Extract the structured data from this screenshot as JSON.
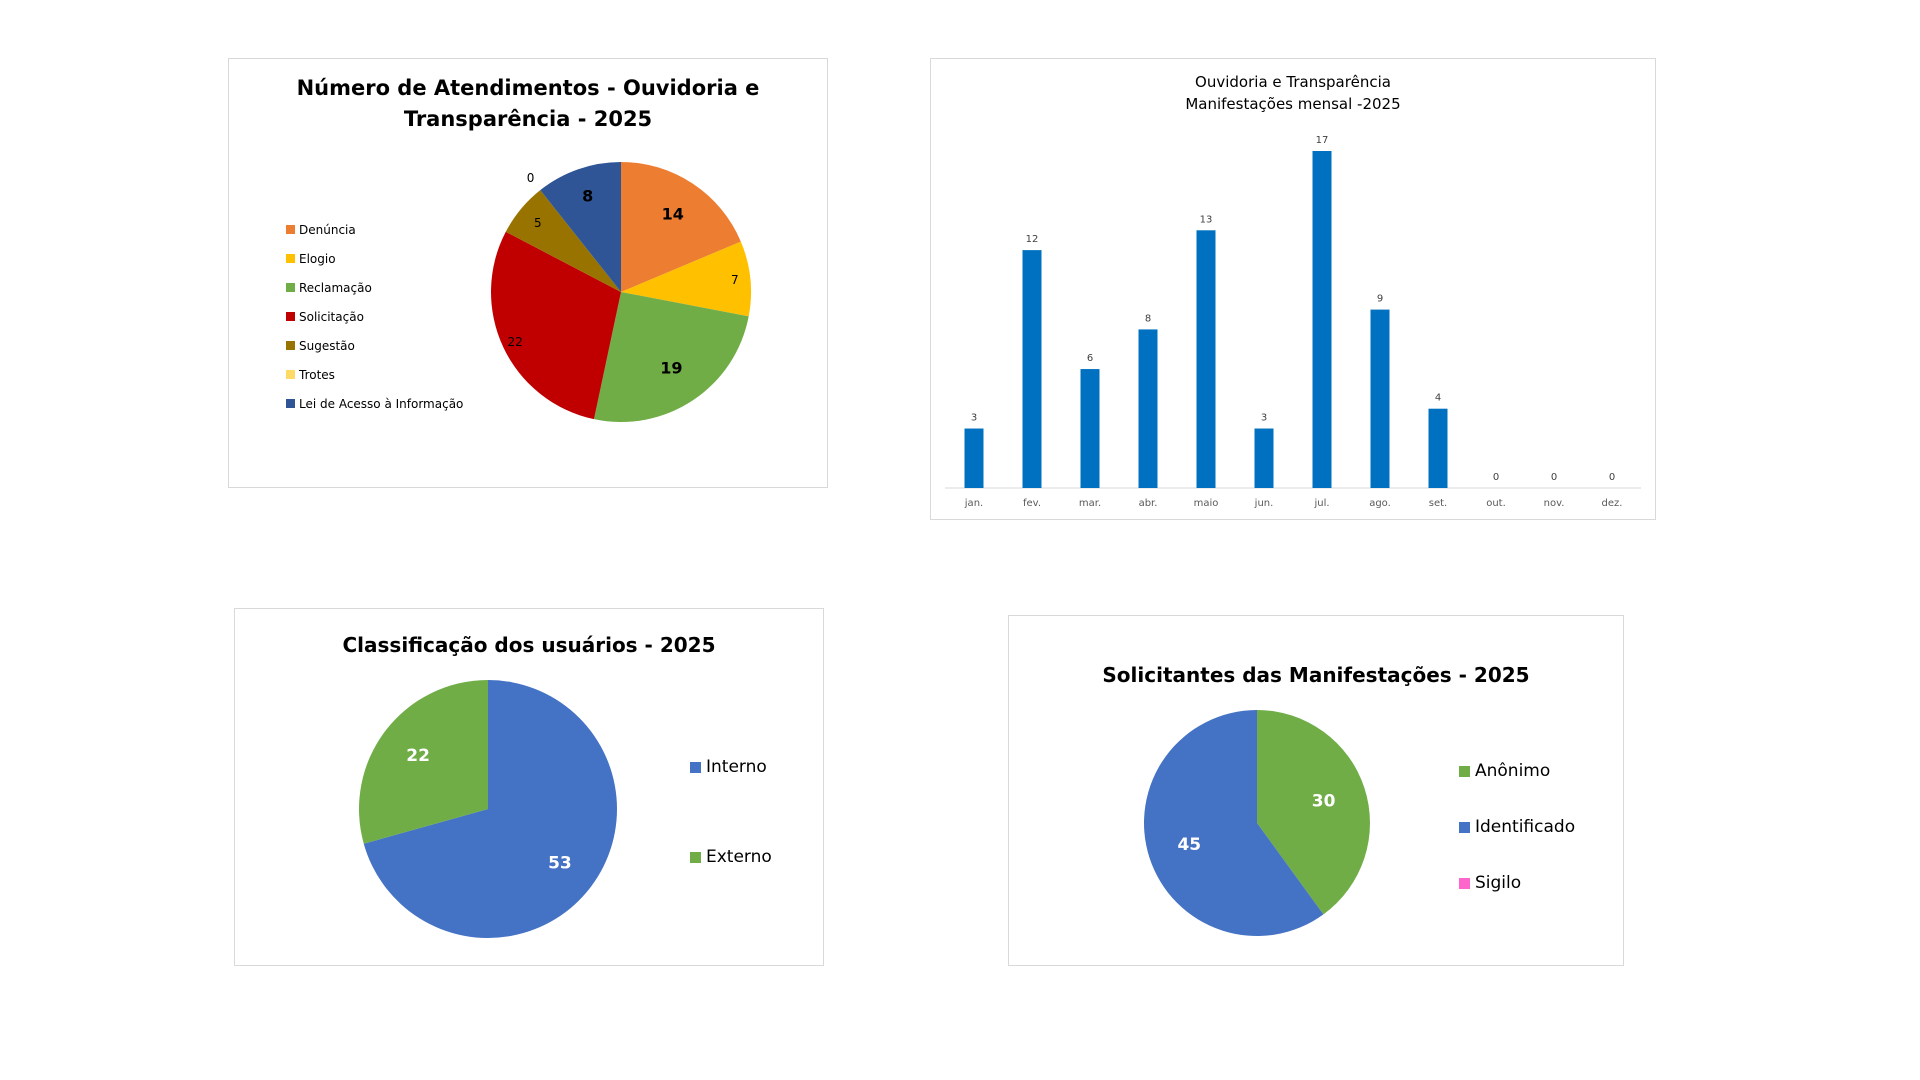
{
  "colors": {
    "denuncia": "#ED7D31",
    "elogio": "#FFC000",
    "reclamacao": "#70AD47",
    "solicitacao": "#C00000",
    "sugestao": "#997300",
    "trotes": "#FFD966",
    "lai": "#2F5597",
    "bar": "#0070C0",
    "interno": "#4472C4",
    "externo": "#70AD47",
    "anonimo": "#70AD47",
    "identificado": "#4472C4",
    "sigilo": "#FF66CC",
    "border": "#d9d9d9"
  },
  "chart_data": [
    {
      "type": "pie",
      "title": "Número de Atendimentos - Ouvidoria e Transparência - 2025",
      "title_lines": [
        "Número de Atendimentos - Ouvidoria e",
        "Transparência - 2025"
      ],
      "categories": [
        "Denúncia",
        "Elogio",
        "Reclamação",
        "Solicitação",
        "Sugestão",
        "Trotes",
        "Lei de Acesso à Informação"
      ],
      "values": [
        14,
        7,
        19,
        22,
        5,
        0,
        8
      ],
      "color_keys": [
        "denuncia",
        "elogio",
        "reclamacao",
        "solicitacao",
        "sugestao",
        "trotes",
        "lai"
      ],
      "label_labels": [
        "14",
        "7",
        "19",
        "22",
        "5",
        "0",
        "8"
      ],
      "legend_position": "left"
    },
    {
      "type": "bar",
      "title_lines": [
        "Ouvidoria e Transparência",
        "Manifestações mensal -2025"
      ],
      "categories": [
        "jan.",
        "fev.",
        "mar.",
        "abr.",
        "maio",
        "jun.",
        "jul.",
        "ago.",
        "set.",
        "out.",
        "nov.",
        "dez."
      ],
      "values": [
        3,
        12,
        6,
        8,
        13,
        3,
        17,
        9,
        4,
        0,
        0,
        0
      ],
      "value_labels": [
        "3",
        "12",
        "6",
        "8",
        "13",
        "3",
        "17",
        "9",
        "4",
        "0",
        "0",
        "0"
      ],
      "ylim": [
        0,
        17
      ],
      "grid": false
    },
    {
      "type": "pie",
      "title": "Classificação dos usuários - 2025",
      "categories": [
        "Interno",
        "Externo"
      ],
      "values": [
        53,
        22
      ],
      "color_keys": [
        "interno",
        "externo"
      ],
      "label_labels": [
        "53",
        "22"
      ],
      "legend_position": "right"
    },
    {
      "type": "pie",
      "title": "Solicitantes das Manifestações - 2025",
      "categories": [
        "Anônimo",
        "Identificado",
        "Sigilo"
      ],
      "values": [
        30,
        45,
        0
      ],
      "color_keys": [
        "anonimo",
        "identificado",
        "sigilo"
      ],
      "label_labels": [
        "30",
        "45",
        ""
      ],
      "legend_position": "right"
    }
  ]
}
